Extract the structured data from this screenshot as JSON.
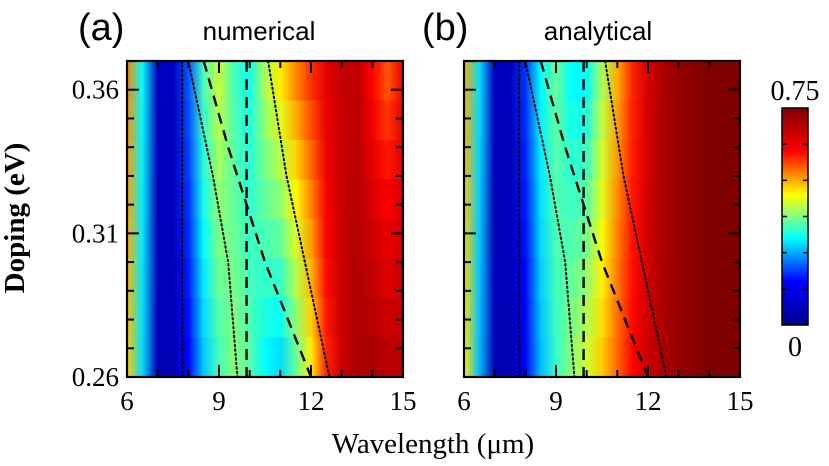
{
  "figure": {
    "xlabel": "Wavelength (μm)",
    "ylabel": "Doping (eV)"
  },
  "colorbar": {
    "max_label": "0.75",
    "min_label": "0",
    "range": [
      0,
      0.75
    ],
    "colormap": "jet",
    "stops": [
      "#00008f",
      "#0000ff",
      "#00ffff",
      "#ffff00",
      "#ff0000",
      "#800000"
    ]
  },
  "chart_data": [
    {
      "type": "heatmap",
      "panel_label": "(a)",
      "title": "numerical",
      "xlim": [
        6,
        15
      ],
      "ylim": [
        0.26,
        0.37
      ],
      "xticks": [
        "6",
        "9",
        "12",
        "15"
      ],
      "yticks": [
        "0.26",
        "0.31",
        "0.36"
      ],
      "xtick_values": [
        6,
        9,
        12,
        15
      ],
      "ytick_values": [
        0.26,
        0.31,
        0.36
      ],
      "profile": {
        "wavelength": [
          6.0,
          6.5,
          7.0,
          7.5,
          8.0,
          8.5,
          9.0,
          9.5,
          10.0,
          10.5,
          11.0,
          11.5,
          12.0,
          12.5,
          13.0,
          13.5,
          14.0,
          14.5,
          15.0
        ],
        "at_doping_0.37": [
          0.52,
          0.3,
          0.06,
          0.07,
          0.2,
          0.34,
          0.42,
          0.34,
          0.31,
          0.4,
          0.46,
          0.52,
          0.57,
          0.63,
          0.67,
          0.68,
          0.6,
          0.55,
          0.62
        ],
        "at_doping_0.26": [
          0.48,
          0.28,
          0.05,
          0.05,
          0.15,
          0.27,
          0.34,
          0.38,
          0.35,
          0.3,
          0.28,
          0.36,
          0.46,
          0.58,
          0.66,
          0.7,
          0.7,
          0.68,
          0.68
        ]
      },
      "lines": [
        {
          "style": "dotted",
          "points": [
            [
              7.8,
              0.37
            ],
            [
              7.8,
              0.26
            ]
          ]
        },
        {
          "style": "dashed",
          "points": [
            [
              9.9,
              0.37
            ],
            [
              9.9,
              0.26
            ]
          ]
        },
        {
          "style": "dashed",
          "points": [
            [
              8.5,
              0.37
            ],
            [
              9.3,
              0.34
            ],
            [
              10.5,
              0.3
            ],
            [
              12.0,
              0.26
            ]
          ]
        },
        {
          "style": "dotted",
          "points": [
            [
              8.0,
              0.37
            ],
            [
              8.8,
              0.33
            ],
            [
              9.3,
              0.3
            ],
            [
              9.6,
              0.26
            ]
          ]
        },
        {
          "style": "dotted",
          "points": [
            [
              10.6,
              0.37
            ],
            [
              11.2,
              0.33
            ],
            [
              11.8,
              0.3
            ],
            [
              12.6,
              0.26
            ]
          ]
        }
      ]
    },
    {
      "type": "heatmap",
      "panel_label": "(b)",
      "title": "analytical",
      "xlim": [
        6,
        15
      ],
      "ylim": [
        0.26,
        0.37
      ],
      "xticks": [
        "6",
        "9",
        "12",
        "15"
      ],
      "yticks": [],
      "xtick_values": [
        6,
        9,
        12,
        15
      ],
      "ytick_values": [
        0.26,
        0.31,
        0.36
      ],
      "profile": {
        "wavelength": [
          6.0,
          6.5,
          7.0,
          7.5,
          8.0,
          8.5,
          9.0,
          9.5,
          10.0,
          10.5,
          11.0,
          11.5,
          12.0,
          12.5,
          13.0,
          13.5,
          14.0,
          14.5,
          15.0
        ],
        "at_doping_0.37": [
          0.5,
          0.28,
          0.06,
          0.06,
          0.18,
          0.3,
          0.36,
          0.3,
          0.3,
          0.4,
          0.5,
          0.58,
          0.65,
          0.7,
          0.72,
          0.74,
          0.76,
          0.78,
          0.8
        ],
        "at_doping_0.26": [
          0.46,
          0.26,
          0.05,
          0.05,
          0.14,
          0.26,
          0.33,
          0.38,
          0.42,
          0.48,
          0.54,
          0.6,
          0.66,
          0.7,
          0.72,
          0.74,
          0.76,
          0.78,
          0.8
        ]
      },
      "lines": [
        {
          "style": "dotted",
          "points": [
            [
              7.8,
              0.37
            ],
            [
              7.8,
              0.26
            ]
          ]
        },
        {
          "style": "dashed",
          "points": [
            [
              9.9,
              0.37
            ],
            [
              9.9,
              0.26
            ]
          ]
        },
        {
          "style": "dashed",
          "points": [
            [
              8.5,
              0.37
            ],
            [
              9.3,
              0.34
            ],
            [
              10.5,
              0.3
            ],
            [
              12.0,
              0.26
            ]
          ]
        },
        {
          "style": "dotted",
          "points": [
            [
              8.0,
              0.37
            ],
            [
              8.8,
              0.33
            ],
            [
              9.3,
              0.3
            ],
            [
              9.6,
              0.26
            ]
          ]
        },
        {
          "style": "dotted",
          "points": [
            [
              10.6,
              0.37
            ],
            [
              11.2,
              0.33
            ],
            [
              11.8,
              0.3
            ],
            [
              12.6,
              0.26
            ]
          ]
        }
      ]
    }
  ]
}
